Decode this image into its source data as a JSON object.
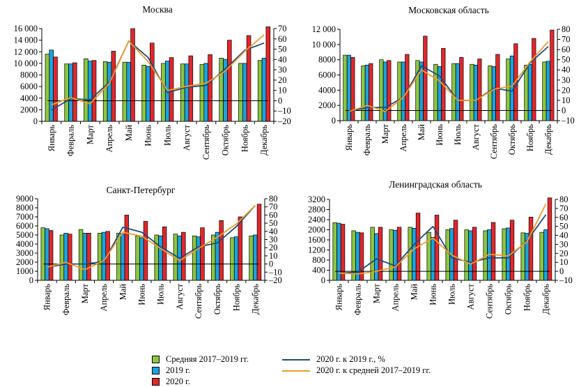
{
  "chart_data": [
    {
      "type": "bar",
      "title": "Москва",
      "categories": [
        "Январь",
        "Февраль",
        "Март",
        "Апрель",
        "Май",
        "Июнь",
        "Июль",
        "Август",
        "Сентябрь",
        "Октябрь",
        "Ноябрь",
        "Декабрь"
      ],
      "left_axis": {
        "min": 0,
        "max": 16000,
        "ticks": [
          "0",
          "2000",
          "4000",
          "6000",
          "8000",
          "10 000",
          "12 000",
          "14 000",
          "16 000"
        ]
      },
      "right_axis": {
        "min": -20,
        "max": 70,
        "ticks": [
          "–20",
          "–10",
          "0",
          "10",
          "20",
          "30",
          "40",
          "50",
          "60",
          "70"
        ]
      },
      "series": [
        {
          "name": "Средняя 2017–2019 гг.",
          "kind": "bar",
          "axis": "left",
          "values": [
            11600,
            9900,
            10800,
            10300,
            10200,
            9700,
            10000,
            9900,
            9800,
            10900,
            10000,
            10500
          ]
        },
        {
          "name": "2019 г.",
          "kind": "bar",
          "axis": "left",
          "values": [
            12300,
            9900,
            10400,
            10200,
            10200,
            9500,
            10400,
            9900,
            10000,
            10700,
            10000,
            10900
          ]
        },
        {
          "name": "2020 г.",
          "kind": "bar",
          "axis": "left",
          "values": [
            11100,
            10100,
            10500,
            12100,
            16000,
            13500,
            11000,
            11300,
            11500,
            14000,
            14800,
            16300
          ]
        },
        {
          "name": "2020 г. к 2019 г., %",
          "kind": "line",
          "axis": "right",
          "values": [
            -9,
            2,
            1,
            18,
            58,
            42,
            8,
            13,
            15,
            31,
            49,
            56
          ]
        },
        {
          "name": "2020 г. к средней 2017–2019 гг.",
          "kind": "line",
          "axis": "right",
          "values": [
            -4,
            3,
            -3,
            17,
            58,
            38,
            10,
            14,
            17,
            29,
            48,
            64
          ]
        }
      ]
    },
    {
      "type": "bar",
      "title": "Московская область",
      "categories": [
        "Январь",
        "Февраль",
        "Март",
        "Апрель",
        "Май",
        "Июнь",
        "Июль",
        "Август",
        "Сентябрь",
        "Октябрь",
        "Ноябрь",
        "Декабрь"
      ],
      "left_axis": {
        "min": 0,
        "max": 12000,
        "ticks": [
          "0",
          "2000",
          "4000",
          "6000",
          "8000",
          "10 000",
          "12 000"
        ]
      },
      "right_axis": {
        "min": -10,
        "max": 80,
        "ticks": [
          "–10",
          "0",
          "10",
          "20",
          "30",
          "40",
          "50",
          "60",
          "70",
          "80"
        ]
      },
      "series": [
        {
          "name": "Средняя 2017–2019 гг.",
          "kind": "bar",
          "axis": "left",
          "values": [
            8600,
            7200,
            8000,
            7700,
            7900,
            7400,
            7500,
            7400,
            7200,
            8100,
            7300,
            7700
          ]
        },
        {
          "name": "2019 г.",
          "kind": "bar",
          "axis": "left",
          "values": [
            8600,
            7300,
            7700,
            7700,
            7700,
            7100,
            7500,
            7300,
            7100,
            8500,
            7400,
            7800
          ]
        },
        {
          "name": "2020 г.",
          "kind": "bar",
          "axis": "left",
          "values": [
            8300,
            7500,
            7900,
            8700,
            11100,
            9500,
            8300,
            8100,
            8700,
            10100,
            10800,
            11900
          ]
        },
        {
          "name": "2020 г. к 2019 г., %",
          "kind": "line",
          "axis": "right",
          "values": [
            -1,
            3,
            3,
            13,
            44,
            34,
            10,
            10,
            22,
            19,
            47,
            63
          ]
        },
        {
          "name": "2020 г. к средней 2017–2019 гг.",
          "kind": "line",
          "axis": "right",
          "values": [
            -1,
            5,
            -1,
            13,
            40,
            29,
            10,
            10,
            21,
            24,
            48,
            68
          ]
        }
      ]
    },
    {
      "type": "bar",
      "title": "Санкт-Петербург",
      "categories": [
        "Январь",
        "Февраль",
        "Март",
        "Апрель",
        "Май",
        "Июнь",
        "Июль",
        "Август",
        "Сентябрь",
        "Октябрь",
        "Ноябрь",
        "Декабрь"
      ],
      "left_axis": {
        "min": 0,
        "max": 9000,
        "ticks": [
          "0",
          "1000",
          "2000",
          "3000",
          "4000",
          "5000",
          "6000",
          "7000",
          "8000",
          "9000"
        ]
      },
      "right_axis": {
        "min": -20,
        "max": 80,
        "ticks": [
          "–20",
          "–10",
          "0",
          "10",
          "20",
          "30",
          "40",
          "50",
          "60",
          "70",
          "80"
        ]
      },
      "series": [
        {
          "name": "Средняя 2017–2019 гг.",
          "kind": "bar",
          "axis": "left",
          "values": [
            5800,
            5000,
            5600,
            5200,
            5200,
            4900,
            5000,
            5100,
            4900,
            5000,
            4700,
            4900
          ]
        },
        {
          "name": "2019 г.",
          "kind": "bar",
          "axis": "left",
          "values": [
            5700,
            5200,
            5200,
            5300,
            5100,
            4700,
            4900,
            4900,
            4800,
            5300,
            4800,
            5000
          ]
        },
        {
          "name": "2020 г.",
          "kind": "bar",
          "axis": "left",
          "values": [
            5500,
            5100,
            5200,
            5400,
            7200,
            6500,
            5900,
            5300,
            5800,
            6600,
            7000,
            8400
          ]
        },
        {
          "name": "2020 г. к 2019 г., %",
          "kind": "line",
          "axis": "right",
          "values": [
            -4,
            0,
            0,
            3,
            45,
            39,
            21,
            7,
            21,
            26,
            46,
            72
          ]
        },
        {
          "name": "2020 г. к средней 2017–2019 гг.",
          "kind": "line",
          "axis": "right",
          "values": [
            -4,
            2,
            -7,
            4,
            39,
            34,
            19,
            4,
            19,
            33,
            49,
            72
          ]
        }
      ]
    },
    {
      "type": "bar",
      "title": "Ленинградская область",
      "categories": [
        "Январь",
        "Февраль",
        "Март",
        "Апрель",
        "Май",
        "Июнь",
        "Июль",
        "Август",
        "Сентябрь",
        "Октябрь",
        "Ноябрь",
        "Декабрь"
      ],
      "left_axis": {
        "min": 0,
        "max": 3200,
        "ticks": [
          "0",
          "400",
          "800",
          "1200",
          "1600",
          "2000",
          "2400",
          "2800",
          "3200"
        ]
      },
      "right_axis": {
        "min": -10,
        "max": 80,
        "ticks": [
          "–10",
          "0",
          "10",
          "20",
          "30",
          "40",
          "50",
          "60",
          "70",
          "80"
        ]
      },
      "series": [
        {
          "name": "Средняя 2017–2019 гг.",
          "kind": "bar",
          "axis": "left",
          "values": [
            2280,
            1960,
            2100,
            2000,
            2100,
            1900,
            2000,
            2000,
            1960,
            2040,
            1880,
            1900
          ]
        },
        {
          "name": "2019 г.",
          "kind": "bar",
          "axis": "left",
          "values": [
            2260,
            1900,
            1850,
            1980,
            2060,
            1700,
            2050,
            1960,
            2000,
            2070,
            1860,
            2000
          ]
        },
        {
          "name": "2020 г.",
          "kind": "bar",
          "axis": "left",
          "values": [
            2220,
            1880,
            2100,
            2100,
            2660,
            2580,
            2380,
            2100,
            2290,
            2380,
            2500,
            3260
          ]
        },
        {
          "name": "2020 г. к 2019 г., %",
          "kind": "line",
          "axis": "right",
          "values": [
            -2,
            -1,
            14,
            6,
            30,
            50,
            15,
            10,
            15,
            15,
            34,
            63
          ]
        },
        {
          "name": "2020 г. к средней 2017–2019 гг.",
          "kind": "line",
          "axis": "right",
          "values": [
            -2,
            -3,
            0,
            5,
            25,
            37,
            18,
            8,
            19,
            17,
            33,
            75
          ]
        }
      ]
    }
  ],
  "legend": {
    "avg": "Средняя 2017–2019 гг.",
    "y2019": "2019 г.",
    "y2020": "2020 г.",
    "vs2019": "2020 г. к 2019 г., %",
    "vsavg": "2020 г. к средней 2017–2019 гг."
  },
  "colors": {
    "avg": "#8cc63f",
    "y2019": "#1aa3e0",
    "y2020": "#e3262b",
    "vs2019": "#1b4f7a",
    "vsavg": "#f39a2b"
  }
}
